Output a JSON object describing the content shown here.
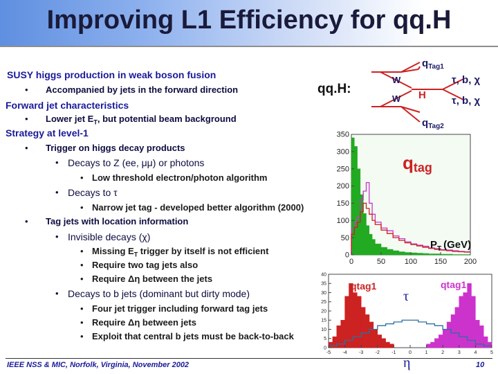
{
  "slide": {
    "title": "Improving L1 Efficiency for qq.H",
    "footer": "IEEE NSS & MIC, Norfolk, Virginia, November 2002",
    "page_number": "10"
  },
  "content": {
    "s1_heading": "SUSY higgs production in weak boson fusion",
    "s1_b1": "Accompanied by jets in the forward direction",
    "s2_heading": "Forward jet characteristics",
    "s2_b1_pre": "Lower jet E",
    "s2_b1_sub": "T",
    "s2_b1_post": ", but potential beam background",
    "s3_heading": "Strategy at level-1",
    "s3_b1": "Trigger on higgs decay products",
    "s3_b1_c1": "Decays to Z (ee, μμ) or photons",
    "s3_b1_c1_d1": "Low threshold electron/photon algorithm",
    "s3_b1_c2": "Decays to τ",
    "s3_b1_c2_d1": "Narrow jet tag - developed better algorithm (2000)",
    "s3_b2": "Tag jets with location information",
    "s3_b2_c1": "Invisible decays (χ)",
    "s3_b2_c1_d1_pre": "Missing E",
    "s3_b2_c1_d1_sub": "T",
    "s3_b2_c1_d1_post": " trigger by itself is not efficient",
    "s3_b2_c1_d2": "Require two tag jets also",
    "s3_b2_c1_d3": "Require Δη between the jets",
    "s3_b2_c2": "Decays to b jets (dominant but dirty mode)",
    "s3_b2_c2_d1": "Four jet trigger including forward tag jets",
    "s3_b2_c2_d2": "Require Δη between jets",
    "s3_b2_c2_d3": "Exploit that central b jets must be back-to-back"
  },
  "bullets": {
    "dot": "•"
  },
  "diagram": {
    "label": "qq.H:",
    "w1": "W",
    "w2": "W",
    "h": "H",
    "qtag1_main": "q",
    "qtag1_sub": "Tag1",
    "qtag2_main": "q",
    "qtag2_sub": "Tag2",
    "decay1": "τ, b, χ",
    "decay2": "τ, b, χ",
    "colors": {
      "line": "#cc2222",
      "text": "#1a1a66"
    }
  },
  "chart_data": [
    {
      "type": "histogram",
      "xlim": [
        0,
        200
      ],
      "ylim": [
        0,
        350
      ],
      "xticks": [
        "0",
        "50",
        "100",
        "150",
        "200"
      ],
      "yticks": [
        "0",
        "50",
        "100",
        "150",
        "200",
        "250",
        "300",
        "350"
      ],
      "annotation_main": "q",
      "annotation_sub": "tag",
      "xlabel_main": "P",
      "xlabel_sub": "T",
      "xlabel_unit": "(GeV)",
      "series": [
        {
          "color": "#22aa22",
          "fill": true,
          "bins": [
            0,
            5,
            10,
            15,
            20,
            25,
            30,
            35,
            40,
            50,
            60,
            70,
            80,
            90,
            100,
            110,
            120,
            130,
            140,
            150,
            160,
            170,
            180,
            190,
            200
          ],
          "values": [
            340,
            315,
            250,
            175,
            120,
            85,
            60,
            45,
            32,
            22,
            16,
            12,
            9,
            7,
            6,
            5,
            4,
            3,
            3,
            2,
            2,
            1,
            1,
            1
          ]
        },
        {
          "color": "#cc33cc",
          "fill": false,
          "bins": [
            0,
            5,
            10,
            15,
            20,
            25,
            30,
            35,
            40,
            50,
            60,
            70,
            80,
            90,
            100,
            110,
            120,
            130,
            140,
            150,
            160,
            170,
            180,
            190,
            200
          ],
          "values": [
            75,
            95,
            110,
            160,
            185,
            210,
            150,
            118,
            95,
            78,
            70,
            55,
            47,
            38,
            32,
            28,
            25,
            20,
            18,
            15,
            14,
            12,
            10,
            9
          ]
        },
        {
          "color": "#cc2222",
          "fill": false,
          "bins": [
            0,
            5,
            10,
            15,
            20,
            25,
            30,
            35,
            40,
            50,
            60,
            70,
            80,
            90,
            100,
            110,
            120,
            130,
            140,
            150,
            160,
            170,
            180,
            190,
            200
          ],
          "values": [
            60,
            80,
            95,
            125,
            150,
            135,
            118,
            100,
            88,
            72,
            62,
            50,
            42,
            35,
            30,
            26,
            22,
            19,
            16,
            14,
            12,
            10,
            9,
            8
          ]
        }
      ]
    },
    {
      "type": "histogram",
      "xlim": [
        -5,
        5
      ],
      "ylim": [
        0,
        40
      ],
      "xticks": [
        "-5",
        "-4",
        "-3",
        "-2",
        "-1",
        "0",
        "1",
        "2",
        "3",
        "4",
        "5"
      ],
      "yticks": [
        "0",
        "5",
        "10",
        "15",
        "20",
        "25",
        "30",
        "35",
        "40"
      ],
      "label_left": "qtag1",
      "label_right": "qtag1",
      "label_center": "τ",
      "xlabel": "η",
      "series": [
        {
          "color": "#cc2222",
          "fill": true,
          "bins": [
            -5,
            -4.75,
            -4.5,
            -4.25,
            -4,
            -3.75,
            -3.5,
            -3.25,
            -3,
            -2.75,
            -2.5,
            -2.25,
            -2,
            -1.75,
            -1.5,
            -1.25,
            -1
          ],
          "values": [
            3,
            6,
            12,
            15,
            28,
            35,
            30,
            28,
            22,
            18,
            14,
            10,
            7,
            5,
            3,
            2
          ]
        },
        {
          "color": "#cc33cc",
          "fill": true,
          "bins": [
            1,
            1.25,
            1.5,
            1.75,
            2,
            2.25,
            2.5,
            2.75,
            3,
            3.25,
            3.5,
            3.75,
            4,
            4.25,
            4.5,
            4.75,
            5
          ],
          "values": [
            2,
            3,
            5,
            7,
            10,
            14,
            18,
            22,
            28,
            30,
            35,
            28,
            15,
            12,
            6,
            3
          ]
        },
        {
          "color": "#2a6fa0",
          "fill": false,
          "bins": [
            -5,
            -4.5,
            -4,
            -3.5,
            -3,
            -2.5,
            -2,
            -1.5,
            -1,
            -0.5,
            0,
            0.5,
            1,
            1.5,
            2,
            2.5,
            3,
            3.5,
            4,
            4.5,
            5
          ],
          "values": [
            1,
            2,
            4,
            6,
            8,
            10,
            12,
            13,
            14,
            15,
            15,
            14,
            13,
            12,
            10,
            8,
            6,
            4,
            2,
            1
          ]
        }
      ]
    }
  ]
}
